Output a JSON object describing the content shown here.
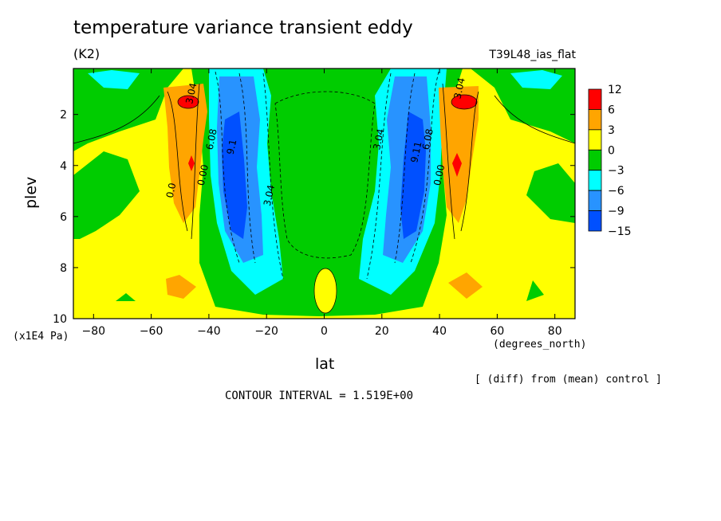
{
  "header": {
    "title": "temperature variance transient eddy",
    "units": "(K2)",
    "run_id": "T39L48_ias_flat"
  },
  "axes": {
    "xlabel": "lat",
    "xunits": "(degrees_north)",
    "ylabel": "plev",
    "yunits": "(x1E4 Pa)"
  },
  "footer": {
    "diff_note": "[ (diff) from (mean) control ]",
    "contour_interval": "CONTOUR INTERVAL = 1.519E+00"
  },
  "colors": {
    "red": "#ff0000",
    "orange": "#ffa500",
    "yellow": "#ffff00",
    "green": "#00cc00",
    "cyan": "#00ffff",
    "lightblue": "#2893ff",
    "blue": "#0050ff"
  },
  "chart_data": {
    "type": "contour",
    "title": "temperature variance transient eddy",
    "units": "K2",
    "xlabel": "lat",
    "ylabel": "plev",
    "xlim": [
      -87,
      87
    ],
    "ylim": [
      10,
      0.2
    ],
    "x_ticks": [
      -80,
      -60,
      -40,
      -20,
      0,
      20,
      40,
      60,
      80
    ],
    "y_ticks": [
      2,
      4,
      6,
      8,
      10
    ],
    "colorbar": {
      "levels": [
        "12",
        "6",
        "3",
        "0",
        "-3",
        "-6",
        "-9",
        "-15"
      ],
      "colors": [
        "#ff0000",
        "#ffa500",
        "#ffff00",
        "#00cc00",
        "#00ffff",
        "#2893ff",
        "#0050ff"
      ]
    },
    "contour_labels": [
      {
        "text": "3.04",
        "lat": -45,
        "plev": 1.2
      },
      {
        "text": "0.0",
        "lat": -52,
        "plev": 5.0
      },
      {
        "text": "0.00",
        "lat": -41,
        "plev": 4.4
      },
      {
        "text": "6.08",
        "lat": -38,
        "plev": 3.0
      },
      {
        "text": "9.1",
        "lat": -31,
        "plev": 3.3
      },
      {
        "text": "3.04",
        "lat": -18,
        "plev": 5.2
      },
      {
        "text": "3.04",
        "lat": 20,
        "plev": 3.0
      },
      {
        "text": "9.11",
        "lat": 33,
        "plev": 3.5
      },
      {
        "text": "6.08",
        "lat": 37,
        "plev": 3.0
      },
      {
        "text": "0.00",
        "lat": 41,
        "plev": 4.4
      },
      {
        "text": "3.04",
        "lat": 48,
        "plev": 1.0
      }
    ],
    "contour_interval": 1.519
  }
}
